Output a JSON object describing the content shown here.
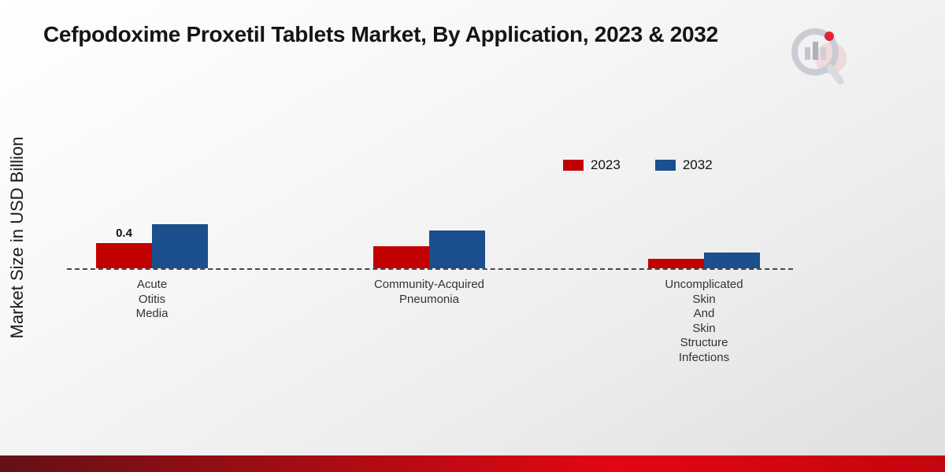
{
  "title": "Cefpodoxime Proxetil Tablets Market, By Application, 2023 & 2032",
  "y_axis_label": "Market Size in USD Billion",
  "legend": {
    "items": [
      {
        "label": "2023",
        "color": "#c20000"
      },
      {
        "label": "2032",
        "color": "#1b4f8e"
      }
    ]
  },
  "icons": {
    "logo": "market-research-magnifier-logo"
  },
  "colors": {
    "series_2023": "#c20000",
    "series_2032": "#1b4f8e",
    "footer_strip": "#e30613",
    "baseline": "#474747"
  },
  "chart_data": {
    "type": "bar",
    "title": "Cefpodoxime Proxetil Tablets Market, By Application, 2023 & 2032",
    "xlabel": "",
    "ylabel": "Market Size in USD Billion",
    "grid": false,
    "legend_position": "top-right",
    "baseline_value": 0,
    "categories": [
      "Acute Otitis Media",
      "Community-Acquired Pneumonia",
      "Uncomplicated Skin And Skin Structure Infections"
    ],
    "category_label_lines": [
      [
        "Acute",
        "Otitis",
        "Media"
      ],
      [
        "Community-Acquired",
        "Pneumonia"
      ],
      [
        "Uncomplicated",
        "Skin",
        "And",
        "Skin",
        "Structure",
        "Infections"
      ]
    ],
    "series": [
      {
        "name": "2023",
        "color": "#c20000",
        "values": [
          0.4,
          0.35,
          0.15
        ]
      },
      {
        "name": "2032",
        "color": "#1b4f8e",
        "values": [
          0.7,
          0.6,
          0.25
        ]
      }
    ],
    "annotations": [
      {
        "category_index": 0,
        "series_index": 0,
        "text": "0.4"
      }
    ]
  }
}
